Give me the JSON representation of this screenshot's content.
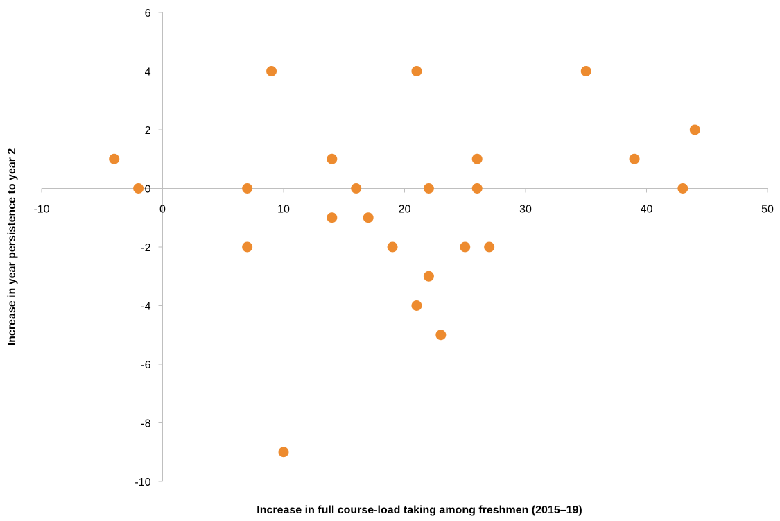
{
  "chart_data": {
    "type": "scatter",
    "title": "",
    "xlabel": "Increase in full course-load taking among freshmen (2015–19)",
    "ylabel": "Increase in year persistence to year 2",
    "xlim": [
      -10,
      50
    ],
    "ylim": [
      -10,
      6
    ],
    "x_ticks": [
      -10,
      0,
      10,
      20,
      30,
      40,
      50
    ],
    "y_ticks": [
      -10,
      -8,
      -6,
      -4,
      -2,
      0,
      2,
      4,
      6
    ],
    "grid": false,
    "legend": "none",
    "marker_color": "#ED8B2F",
    "series": [
      {
        "points": [
          {
            "x": -4,
            "y": 1
          },
          {
            "x": -2,
            "y": 0
          },
          {
            "x": 7,
            "y": 0
          },
          {
            "x": 7,
            "y": -2
          },
          {
            "x": 9,
            "y": 4
          },
          {
            "x": 10,
            "y": -9
          },
          {
            "x": 14,
            "y": 1
          },
          {
            "x": 14,
            "y": -1
          },
          {
            "x": 16,
            "y": 0
          },
          {
            "x": 17,
            "y": -1
          },
          {
            "x": 19,
            "y": -2
          },
          {
            "x": 21,
            "y": 4
          },
          {
            "x": 21,
            "y": -4
          },
          {
            "x": 22,
            "y": 0
          },
          {
            "x": 22,
            "y": -3
          },
          {
            "x": 23,
            "y": -5
          },
          {
            "x": 25,
            "y": -2
          },
          {
            "x": 26,
            "y": 1
          },
          {
            "x": 26,
            "y": 0
          },
          {
            "x": 27,
            "y": -2
          },
          {
            "x": 35,
            "y": 4
          },
          {
            "x": 39,
            "y": 1
          },
          {
            "x": 43,
            "y": 0
          },
          {
            "x": 44,
            "y": 2
          }
        ]
      }
    ]
  }
}
